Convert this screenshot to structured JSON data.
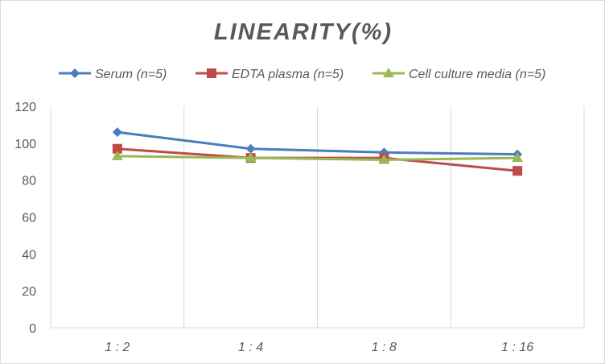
{
  "chart_data": {
    "type": "line",
    "title": "LINEARITY(%)",
    "categories": [
      "1:2",
      "1:4",
      "1:8",
      "1:16"
    ],
    "series": [
      {
        "name": "Serum (n=5)",
        "values": [
          106,
          97,
          95,
          94
        ],
        "color": "#4a7ebb",
        "marker": "diamond"
      },
      {
        "name": "EDTA plasma (n=5)",
        "values": [
          97,
          92,
          92,
          85
        ],
        "color": "#be4b48",
        "marker": "square"
      },
      {
        "name": "Cell culture media (n=5)",
        "values": [
          93,
          92,
          91,
          92
        ],
        "color": "#98b954",
        "marker": "triangle"
      }
    ],
    "ylim": [
      0,
      120
    ],
    "yticks": [
      0,
      20,
      40,
      60,
      80,
      100,
      120
    ],
    "grid": "vertical",
    "legend": "top"
  }
}
